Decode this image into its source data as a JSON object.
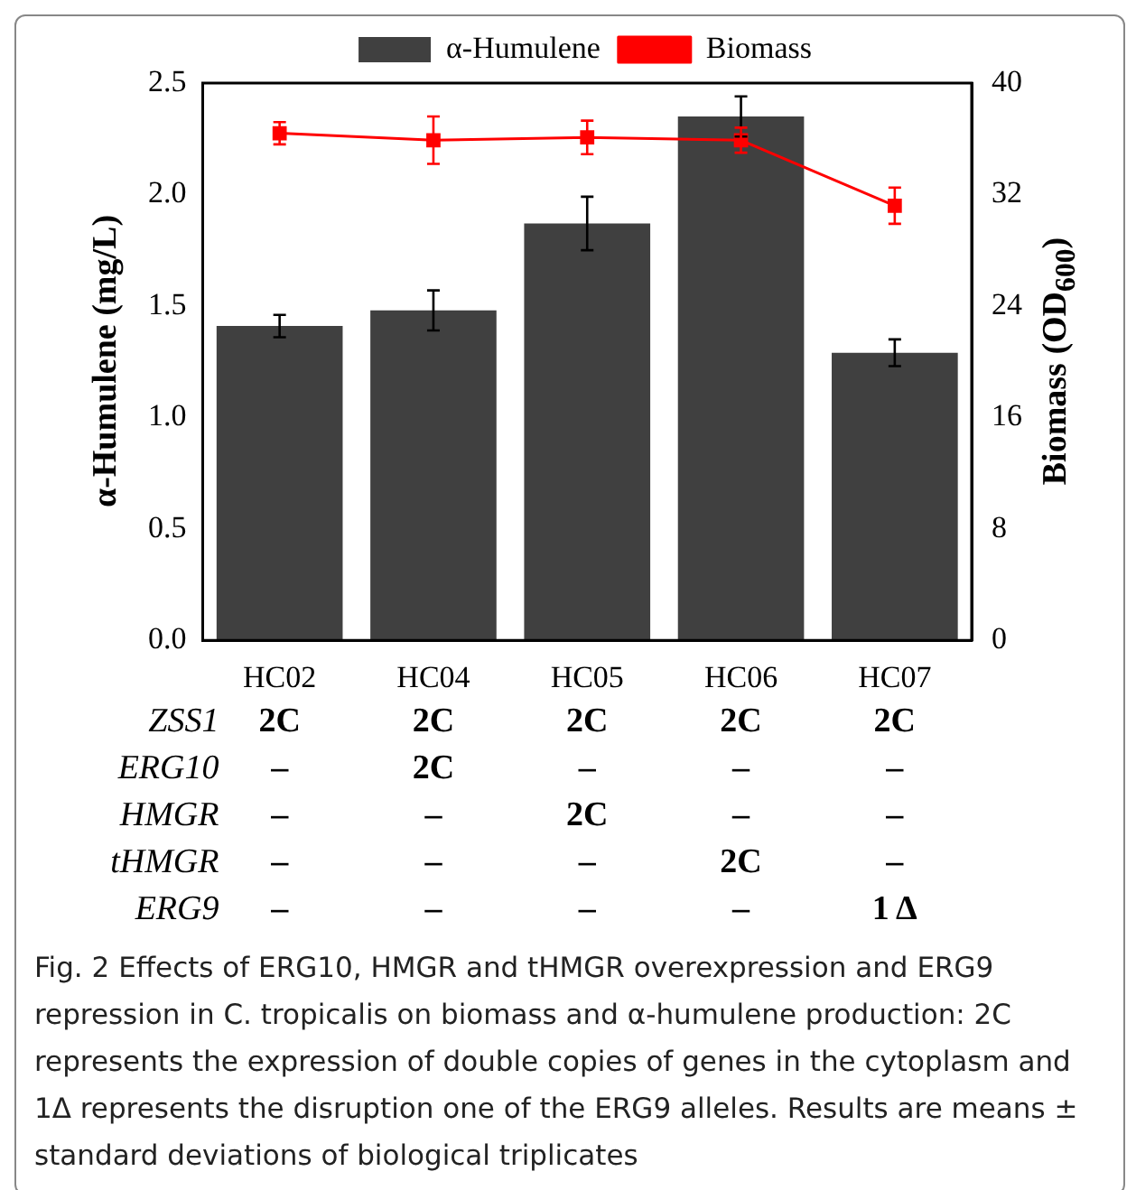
{
  "chart_data": {
    "type": "bar",
    "ylabel": "α-Humulene (mg/L)",
    "y2label": "Biomass (OD$_{600}$)",
    "categories": [
      "HC02",
      "HC04",
      "HC05",
      "HC06",
      "HC07"
    ],
    "series": [
      {
        "name": "α-Humulene",
        "color": "#404040",
        "values": [
          1.41,
          1.48,
          1.87,
          2.35,
          1.29
        ],
        "errors": [
          0.05,
          0.09,
          0.12,
          0.09,
          0.06
        ]
      },
      {
        "name": "Biomass",
        "type": "line",
        "axis": "y2",
        "color": "#ff0000",
        "marker": "square",
        "values": [
          36.4,
          35.9,
          36.1,
          35.9,
          31.2
        ],
        "errors": [
          0.8,
          1.7,
          1.2,
          0.9,
          1.3
        ]
      }
    ],
    "ylim": [
      0,
      2.5
    ],
    "yticks": [
      {
        "value": 0,
        "label": "0.0"
      },
      {
        "value": 0.5,
        "label": "0.5"
      },
      {
        "value": 1,
        "label": "1.0"
      },
      {
        "value": 1.5,
        "label": "1.5"
      },
      {
        "value": 2,
        "label": "2.0"
      },
      {
        "value": 2.5,
        "label": "2.5"
      }
    ],
    "y2lim": [
      0,
      40
    ],
    "y2ticks": [
      0,
      8,
      16,
      24,
      32,
      40
    ],
    "grid": false,
    "legend": "top",
    "annotations": [
      "ZSS1",
      "2C",
      "2C",
      "2C",
      "2C",
      "2C",
      "ERG10",
      "–",
      "2C",
      "–",
      "–",
      "–",
      "HMGR",
      "–",
      "–",
      "2C",
      "–",
      "–",
      "tHMGR",
      "–",
      "–",
      "–",
      "2C",
      "–",
      "ERG9",
      "–",
      "–",
      "–",
      "–",
      "1 Δ",
      "Fig. 2  Effects of ERG10, HMGR and tHMGR overexpression and ERG9 repression in C. tropicalis on biomass and α-humulene production: 2C represents the expression of double copies of genes in the cytoplasm and 1Δ represents the disruption one of the ERG9 alleles. Results are means ± standard deviations of biological triplicates"
    ]
  }
}
